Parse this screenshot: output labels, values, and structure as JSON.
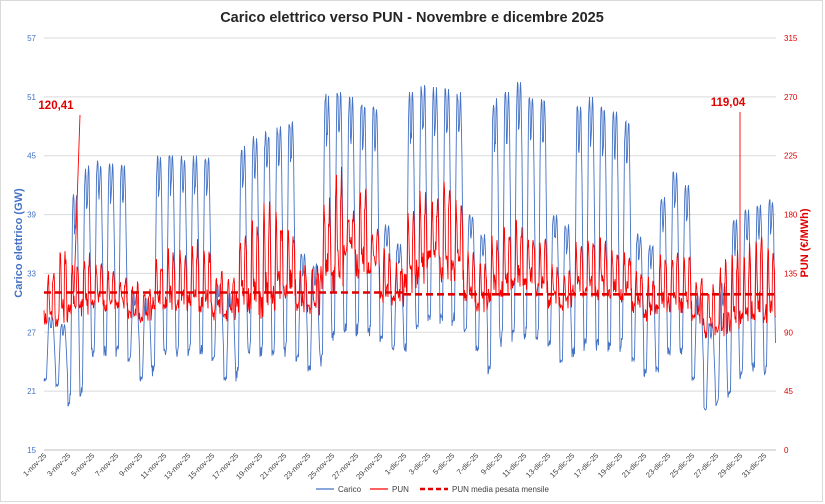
{
  "chart_data": {
    "type": "line",
    "title": "Carico elettrico verso PUN - Novembre e dicembre 2025",
    "ylabel_left": "Carico elettrico (GW)",
    "ylabel_right": "PUN (€/MWh)",
    "ylim_left": [
      15,
      57
    ],
    "yticks_left": [
      "15",
      "21",
      "27",
      "33",
      "39",
      "45",
      "51",
      "57"
    ],
    "ylim_right": [
      0,
      315
    ],
    "yticks_right": [
      "0",
      "45",
      "90",
      "135",
      "180",
      "225",
      "270",
      "315"
    ],
    "x_categories": [
      "1-nov-25",
      "3-nov-25",
      "5-nov-25",
      "7-nov-25",
      "9-nov-25",
      "11-nov-25",
      "13-nov-25",
      "15-nov-25",
      "17-nov-25",
      "19-nov-25",
      "21-nov-25",
      "23-nov-25",
      "25-nov-25",
      "27-nov-25",
      "29-nov-25",
      "1-dic-25",
      "3-dic-25",
      "5-dic-25",
      "7-dic-25",
      "9-dic-25",
      "11-dic-25",
      "13-dic-25",
      "15-dic-25",
      "17-dic-25",
      "19-dic-25",
      "21-dic-25",
      "23-dic-25",
      "25-dic-25",
      "27-dic-25",
      "29-dic-25",
      "31-dic-25"
    ],
    "x_range_days": [
      0,
      61
    ],
    "grid": true,
    "series": [
      {
        "name": "Carico",
        "axis": "left",
        "color": "#4472c4",
        "style": "solid",
        "daily_peak_gw": [
          28.5,
          27.8,
          41.5,
          44.0,
          44.5,
          44.2,
          44.0,
          31.0,
          30.5,
          45.0,
          45.2,
          45.0,
          45.0,
          44.8,
          32.0,
          31.0,
          46.0,
          47.0,
          47.5,
          48.0,
          48.5,
          35.0,
          34.0,
          51.5,
          51.5,
          51.0,
          50.5,
          50.0,
          38.0,
          36.0,
          51.5,
          52.2,
          52.0,
          51.8,
          51.5,
          39.0,
          37.0,
          51.0,
          51.5,
          52.5,
          51.5,
          51.0,
          39.0,
          38.0,
          50.0,
          51.0,
          50.0,
          49.5,
          48.5,
          37.0,
          36.0,
          41.0,
          43.5,
          42.0,
          31.0,
          28.0,
          32.0,
          38.5,
          39.5,
          40.0,
          40.5
        ],
        "daily_min_gw": [
          22.0,
          21.5,
          19.5,
          20.5,
          24.5,
          24.5,
          24.5,
          24.0,
          22.0,
          22.5,
          24.5,
          24.5,
          24.5,
          24.5,
          24.0,
          22.0,
          22.0,
          24.5,
          24.5,
          24.5,
          24.5,
          24.0,
          23.0,
          23.5,
          26.0,
          26.5,
          26.5,
          26.5,
          26.0,
          25.0,
          24.5,
          27.0,
          27.5,
          27.5,
          27.5,
          27.0,
          25.0,
          22.5,
          25.5,
          26.0,
          26.0,
          26.0,
          25.5,
          23.5,
          24.0,
          25.0,
          25.0,
          25.0,
          25.0,
          24.0,
          22.5,
          22.5,
          24.5,
          24.5,
          22.0,
          19.0,
          19.5,
          20.0,
          22.0,
          23.0,
          22.5
        ]
      },
      {
        "name": "PUN",
        "axis": "right",
        "color": "#ff0000",
        "style": "solid",
        "daily_mean_eur_mwh": [
          110,
          112,
          116,
          118,
          119,
          117,
          116,
          108,
          106,
          120,
          122,
          121,
          123,
          122,
          112,
          110,
          125,
          128,
          130,
          132,
          134,
          118,
          116,
          145,
          150,
          160,
          155,
          148,
          125,
          120,
          140,
          150,
          158,
          155,
          150,
          126,
          118,
          130,
          135,
          138,
          136,
          132,
          120,
          116,
          130,
          132,
          130,
          128,
          126,
          116,
          110,
          118,
          122,
          120,
          108,
          100,
          102,
          110,
          115,
          118,
          116
        ],
        "daily_peak_eur_mwh": [
          135,
          150,
          138,
          145,
          140,
          135,
          130,
          125,
          122,
          142,
          150,
          148,
          155,
          150,
          135,
          130,
          160,
          170,
          180,
          175,
          165,
          140,
          138,
          185,
          205,
          180,
          195,
          170,
          150,
          140,
          175,
          195,
          190,
          200,
          185,
          150,
          140,
          160,
          165,
          170,
          162,
          158,
          140,
          135,
          155,
          160,
          158,
          150,
          148,
          135,
          130,
          145,
          150,
          146,
          130,
          125,
          140,
          145,
          150,
          155,
          150
        ]
      },
      {
        "name": "PUN media pesata mensile",
        "axis": "right",
        "color": "#e00000",
        "style": "dashed",
        "segments": [
          {
            "from_day": 0,
            "to_day": 30,
            "value": 120.41
          },
          {
            "from_day": 30,
            "to_day": 61,
            "value": 119.04
          }
        ]
      }
    ],
    "annotations": [
      {
        "text": "120,41",
        "day": 2.5,
        "value_eur_mwh": 120.41
      },
      {
        "text": "119,04",
        "day": 58.0,
        "value_eur_mwh": 119.04
      }
    ],
    "legend": {
      "placement": "bottom",
      "items": [
        "Carico",
        "PUN",
        "PUN media pesata mensile"
      ]
    }
  }
}
